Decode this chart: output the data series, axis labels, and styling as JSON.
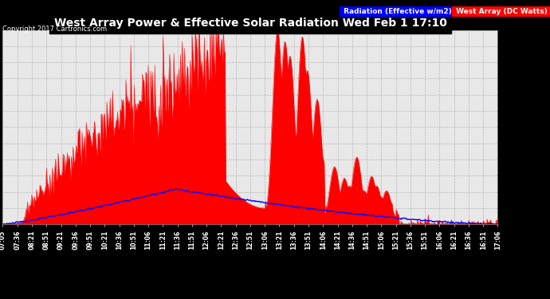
{
  "title": "West Array Power & Effective Solar Radiation Wed Feb 1 17:10",
  "copyright": "Copyright 2017 Cartronics.com",
  "legend_blue": "Radiation (Effective w/m2)",
  "legend_red": "West Array (DC Watts)",
  "bg_color": "#000000",
  "plot_bg_color": "#e8e8e8",
  "title_color": "#ffffff",
  "grid_color": "#aaaaaa",
  "yticks": [
    0.0,
    168.1,
    336.1,
    504.2,
    672.2,
    840.3,
    1008.3,
    1176.4,
    1344.5,
    1512.5,
    1680.6,
    1848.6,
    2016.7
  ],
  "ylim": [
    0,
    2016.7
  ],
  "xtick_labels": [
    "07:05",
    "07:36",
    "08:21",
    "08:51",
    "09:21",
    "09:36",
    "09:51",
    "10:21",
    "10:36",
    "10:51",
    "11:06",
    "11:21",
    "11:36",
    "11:51",
    "12:06",
    "12:21",
    "12:36",
    "12:51",
    "13:06",
    "13:21",
    "13:36",
    "13:51",
    "14:06",
    "14:21",
    "14:36",
    "14:51",
    "15:06",
    "15:21",
    "15:36",
    "15:51",
    "16:06",
    "16:21",
    "16:36",
    "16:51",
    "17:06"
  ]
}
